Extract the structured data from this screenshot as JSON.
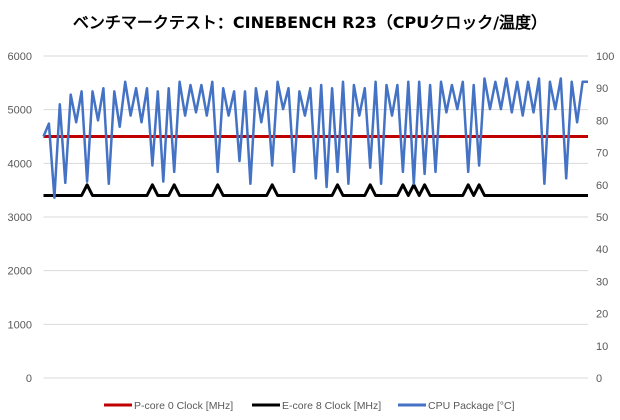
{
  "chart_data": {
    "type": "line",
    "title": "ベンチマークテスト：CINEBENCH R23（CPUクロック/温度）",
    "xlabel": "",
    "ylabel": "",
    "y_left": {
      "ylim": [
        0,
        6000
      ],
      "ticks": [
        "0",
        "1000",
        "2000",
        "3000",
        "4000",
        "5000",
        "6000"
      ]
    },
    "y_right": {
      "ylim": [
        0,
        100
      ],
      "ticks": [
        "0",
        "10",
        "20",
        "30",
        "40",
        "50",
        "60",
        "70",
        "80",
        "90",
        "100"
      ]
    },
    "grid": true,
    "legend_position": "bottom",
    "x": "sample index 0-100",
    "series": [
      {
        "name": "P-core 0 Clock [MHz]",
        "axis": "left",
        "color": "#c00000",
        "values": [
          4500,
          4500,
          4500,
          4500,
          4500,
          4500,
          4500,
          4500,
          4500,
          4500,
          4500,
          4500,
          4500,
          4500,
          4500,
          4500,
          4500,
          4500,
          4500,
          4500,
          4500,
          4500,
          4500,
          4500,
          4500,
          4500,
          4500,
          4500,
          4500,
          4500,
          4500,
          4500,
          4500,
          4500,
          4500,
          4500,
          4500,
          4500,
          4500,
          4500,
          4500,
          4500,
          4500,
          4500,
          4500,
          4500,
          4500,
          4500,
          4500,
          4500,
          4500,
          4500,
          4500,
          4500,
          4500,
          4500,
          4500,
          4500,
          4500,
          4500,
          4500,
          4500,
          4500,
          4500,
          4500,
          4500,
          4500,
          4500,
          4500,
          4500,
          4500,
          4500,
          4500,
          4500,
          4500,
          4500,
          4500,
          4500,
          4500,
          4500,
          4500,
          4500,
          4500,
          4500,
          4500,
          4500,
          4500,
          4500,
          4500,
          4500,
          4500,
          4500,
          4500,
          4500,
          4500,
          4500,
          4500,
          4500,
          4500,
          4500,
          4500
        ]
      },
      {
        "name": "E-core 8 Clock [MHz]",
        "axis": "left",
        "color": "#000000",
        "values": [
          3400,
          3400,
          3400,
          3400,
          3400,
          3400,
          3400,
          3400,
          3600,
          3400,
          3400,
          3400,
          3400,
          3400,
          3400,
          3400,
          3400,
          3400,
          3400,
          3400,
          3600,
          3400,
          3400,
          3400,
          3600,
          3400,
          3400,
          3400,
          3400,
          3400,
          3400,
          3400,
          3600,
          3400,
          3400,
          3400,
          3400,
          3400,
          3400,
          3400,
          3400,
          3400,
          3600,
          3400,
          3400,
          3400,
          3400,
          3400,
          3400,
          3400,
          3400,
          3400,
          3400,
          3400,
          3600,
          3400,
          3400,
          3400,
          3400,
          3400,
          3600,
          3400,
          3400,
          3400,
          3400,
          3400,
          3600,
          3400,
          3600,
          3400,
          3600,
          3400,
          3400,
          3400,
          3400,
          3400,
          3400,
          3400,
          3600,
          3400,
          3600,
          3400,
          3400,
          3400,
          3400,
          3400,
          3400,
          3400,
          3400,
          3400,
          3400,
          3400,
          3400,
          3400,
          3400,
          3400,
          3400,
          3400,
          3400,
          3400,
          3400
        ]
      },
      {
        "name": "CPU Package [°C]",
        "axis": "right",
        "color": "#4472c4",
        "values": [
          75,
          79,
          56,
          85,
          60.6,
          88,
          79.4,
          89,
          61,
          89,
          80,
          90,
          60.3,
          89,
          78,
          92,
          81.5,
          90,
          79.4,
          90,
          66,
          89,
          61,
          90,
          64,
          92,
          81.5,
          91,
          82.5,
          91,
          81.5,
          92,
          64,
          90,
          81.5,
          89,
          67.4,
          89,
          60.3,
          90,
          79.4,
          89,
          66,
          92,
          83.5,
          90,
          64,
          89,
          81.5,
          90,
          62,
          91,
          59.3,
          90,
          64,
          92,
          60.3,
          91,
          81.5,
          90,
          65.3,
          92,
          60.3,
          91,
          81.5,
          91,
          64,
          92,
          60.3,
          92,
          63.4,
          91,
          64,
          92,
          82.5,
          91,
          83.5,
          92,
          64,
          91,
          66,
          93,
          83.5,
          92,
          83.5,
          93,
          82.5,
          92,
          81.5,
          92,
          82.5,
          93,
          60.3,
          92,
          83.5,
          93,
          62,
          92,
          79.4,
          92,
          92
        ]
      }
    ]
  }
}
